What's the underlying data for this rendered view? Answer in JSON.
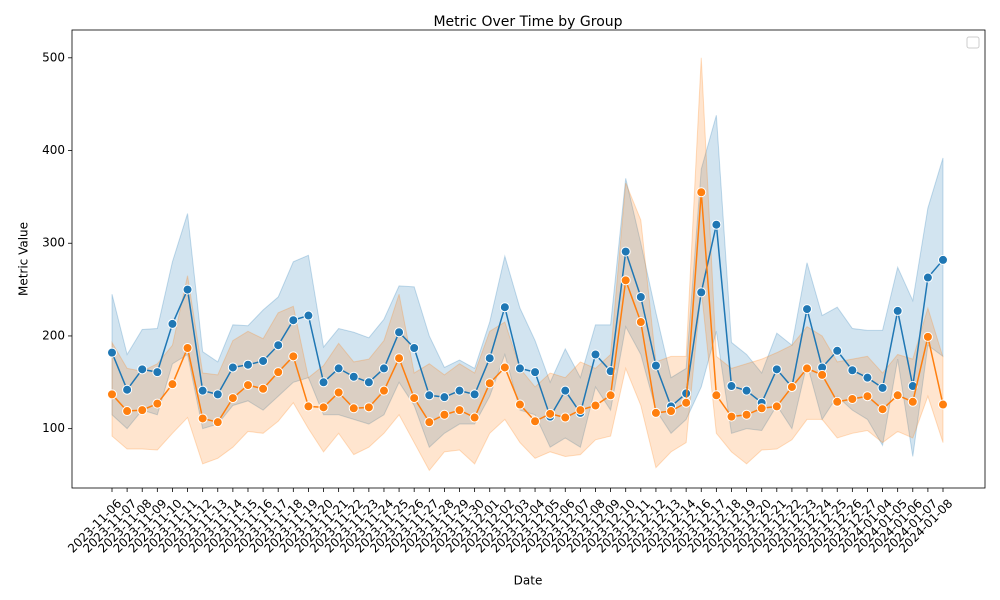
{
  "chart_data": {
    "type": "line",
    "title": "Metric Over Time by Group",
    "x_label": "Date",
    "y_label": "Metric Value",
    "categories": [
      "2023-11-06",
      "2023-11-07",
      "2023-11-08",
      "2023-11-09",
      "2023-11-10",
      "2023-11-11",
      "2023-11-12",
      "2023-11-13",
      "2023-11-14",
      "2023-11-15",
      "2023-11-16",
      "2023-11-17",
      "2023-11-18",
      "2023-11-19",
      "2023-11-20",
      "2023-11-21",
      "2023-11-22",
      "2023-11-23",
      "2023-11-24",
      "2023-11-25",
      "2023-11-26",
      "2023-11-27",
      "2023-11-28",
      "2023-11-29",
      "2023-11-30",
      "2023-12-01",
      "2023-12-02",
      "2023-12-03",
      "2023-12-04",
      "2023-12-05",
      "2023-12-06",
      "2023-12-07",
      "2023-12-08",
      "2023-12-09",
      "2023-12-10",
      "2023-12-11",
      "2023-12-12",
      "2023-12-13",
      "2023-12-14",
      "2023-12-16",
      "2023-12-17",
      "2023-12-18",
      "2023-12-19",
      "2023-12-20",
      "2023-12-21",
      "2023-12-22",
      "2023-12-23",
      "2023-12-24",
      "2023-12-25",
      "2023-12-26",
      "2023-12-27",
      "2024-01-04",
      "2024-01-05",
      "2024-01-06",
      "2024-01-07",
      "2024-01-08"
    ],
    "series": [
      {
        "color": "#1f77b4",
        "values": [
          182,
          142,
          164,
          161,
          213,
          250,
          141,
          137,
          166,
          169,
          173,
          190,
          217,
          222,
          150,
          165,
          156,
          150,
          165,
          204,
          187,
          136,
          134,
          141,
          137,
          176,
          231,
          165,
          161,
          113,
          141,
          117,
          180,
          162,
          291,
          242,
          168,
          124,
          138,
          247,
          320,
          146,
          141,
          128,
          164,
          145,
          229,
          166,
          184,
          163,
          155,
          144,
          227,
          146,
          263,
          282
        ],
        "lower": [
          115,
          100,
          120,
          115,
          170,
          180,
          100,
          105,
          125,
          130,
          120,
          135,
          150,
          155,
          115,
          115,
          110,
          105,
          115,
          150,
          125,
          80,
          95,
          105,
          105,
          135,
          180,
          120,
          115,
          80,
          90,
          80,
          145,
          120,
          210,
          180,
          120,
          95,
          110,
          145,
          205,
          95,
          100,
          98,
          125,
          100,
          170,
          110,
          135,
          120,
          110,
          82,
          175,
          70,
          190,
          178
        ],
        "upper": [
          245,
          180,
          207,
          208,
          280,
          332,
          183,
          172,
          212,
          211,
          228,
          242,
          280,
          287,
          188,
          208,
          204,
          198,
          218,
          254,
          253,
          200,
          166,
          174,
          165,
          215,
          286,
          230,
          195,
          150,
          186,
          155,
          212,
          212,
          370,
          300,
          225,
          155,
          165,
          380,
          438,
          193,
          180,
          160,
          203,
          190,
          279,
          222,
          231,
          208,
          206,
          206,
          274,
          238,
          338,
          392
        ]
      },
      {
        "color": "#ff7f0e",
        "values": [
          137,
          119,
          120,
          127,
          148,
          187,
          111,
          107,
          133,
          147,
          143,
          161,
          178,
          124,
          123,
          139,
          122,
          123,
          141,
          176,
          133,
          107,
          115,
          120,
          112,
          149,
          166,
          126,
          108,
          116,
          112,
          120,
          125,
          136,
          260,
          215,
          117,
          119,
          128,
          355,
          136,
          113,
          115,
          122,
          124,
          145,
          165,
          158,
          129,
          132,
          135,
          121,
          136,
          129,
          199,
          126
        ],
        "lower": [
          92,
          78,
          78,
          77,
          95,
          112,
          62,
          68,
          80,
          97,
          95,
          108,
          128,
          100,
          75,
          95,
          72,
          80,
          95,
          115,
          85,
          55,
          75,
          77,
          62,
          95,
          110,
          85,
          68,
          75,
          70,
          72,
          88,
          92,
          165,
          125,
          58,
          75,
          85,
          250,
          95,
          75,
          62,
          77,
          78,
          88,
          110,
          110,
          90,
          95,
          98,
          85,
          97,
          90,
          135,
          85
        ],
        "upper": [
          193,
          165,
          162,
          170,
          190,
          265,
          160,
          158,
          195,
          205,
          197,
          225,
          232,
          155,
          168,
          192,
          172,
          175,
          195,
          245,
          160,
          170,
          158,
          170,
          160,
          205,
          215,
          165,
          145,
          160,
          155,
          172,
          165,
          180,
          365,
          325,
          172,
          178,
          178,
          500,
          178,
          165,
          170,
          175,
          182,
          190,
          210,
          200,
          172,
          175,
          178,
          160,
          180,
          175,
          230,
          177
        ]
      }
    ],
    "ylim": [
      36,
      530
    ],
    "yticks": [
      100,
      200,
      300,
      400,
      500
    ],
    "legend": "upper right"
  }
}
